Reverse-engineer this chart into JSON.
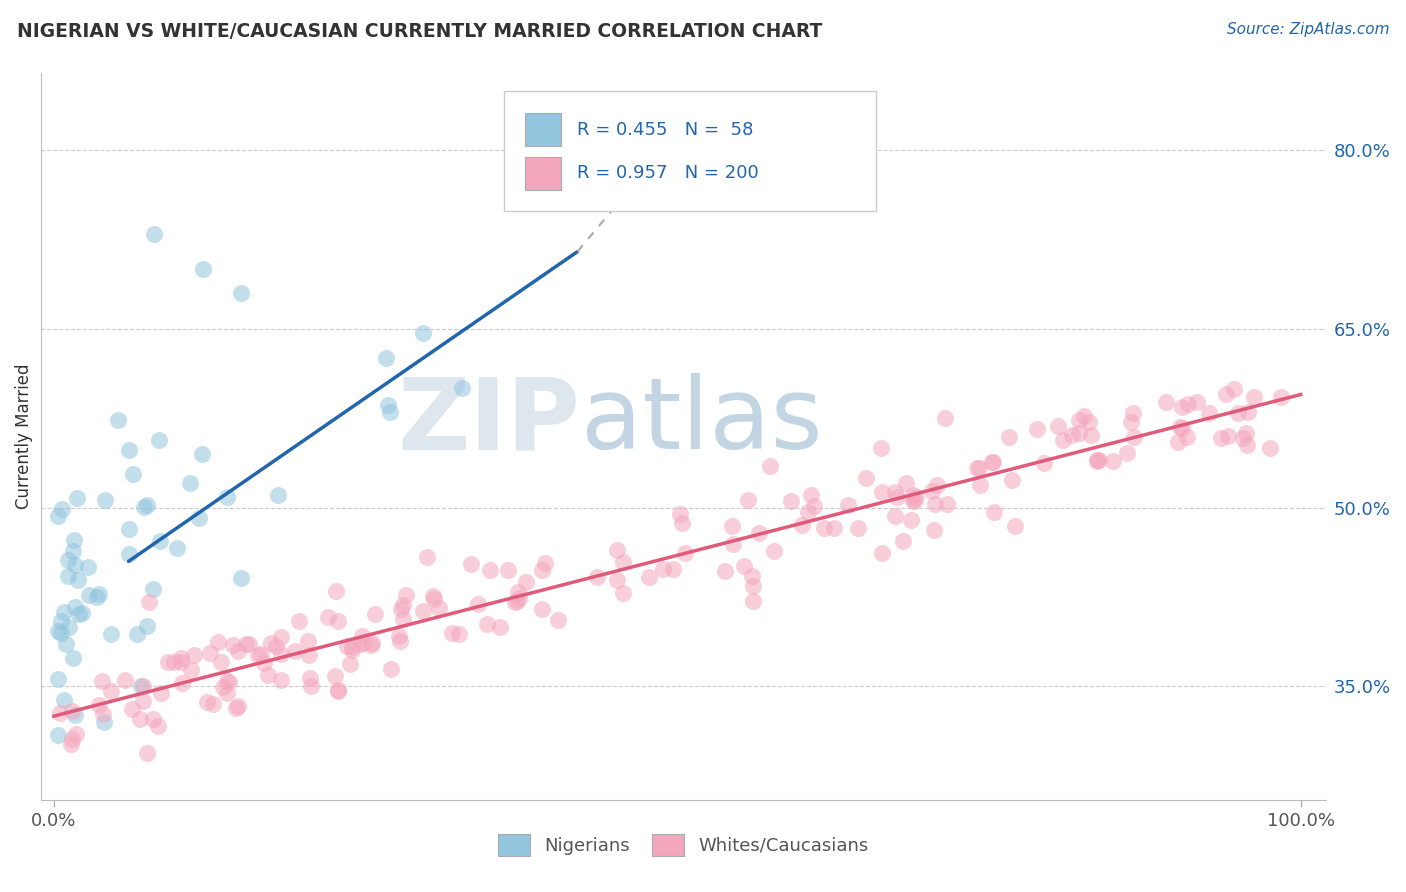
{
  "title": "NIGERIAN VS WHITE/CAUCASIAN CURRENTLY MARRIED CORRELATION CHART",
  "source": "Source: ZipAtlas.com",
  "ylabel": "Currently Married",
  "xlim": [
    -0.01,
    1.02
  ],
  "ylim": [
    0.255,
    0.865
  ],
  "x_tick_labels": [
    "0.0%",
    "100.0%"
  ],
  "x_tick_positions": [
    0.0,
    1.0
  ],
  "y_tick_labels_right": [
    "35.0%",
    "50.0%",
    "65.0%",
    "80.0%"
  ],
  "y_tick_values_right": [
    0.35,
    0.5,
    0.65,
    0.8
  ],
  "legend_R_blue": "0.455",
  "legend_N_blue": "58",
  "legend_R_pink": "0.957",
  "legend_N_pink": "200",
  "blue_color": "#92c5de",
  "pink_color": "#f4a6bd",
  "blue_line_color": "#2166ac",
  "pink_line_color": "#e05a7a",
  "blue_line_solid": [
    [
      0.06,
      0.455
    ],
    [
      0.42,
      0.715
    ]
  ],
  "blue_line_dashed": [
    [
      0.42,
      0.715
    ],
    [
      0.48,
      0.79
    ]
  ],
  "pink_line": [
    [
      0.0,
      0.325
    ],
    [
      1.0,
      0.595
    ]
  ],
  "watermark_text": "ZIPatlas",
  "watermark_color": "#c8dce8",
  "background_color": "#ffffff",
  "grid_color": "#cccccc",
  "title_color": "#333333",
  "source_color": "#2166ac",
  "tick_color": "#2166ac",
  "ylabel_color": "#333333",
  "legend_box_color": "#cccccc",
  "bottom_legend_color": "#555555"
}
